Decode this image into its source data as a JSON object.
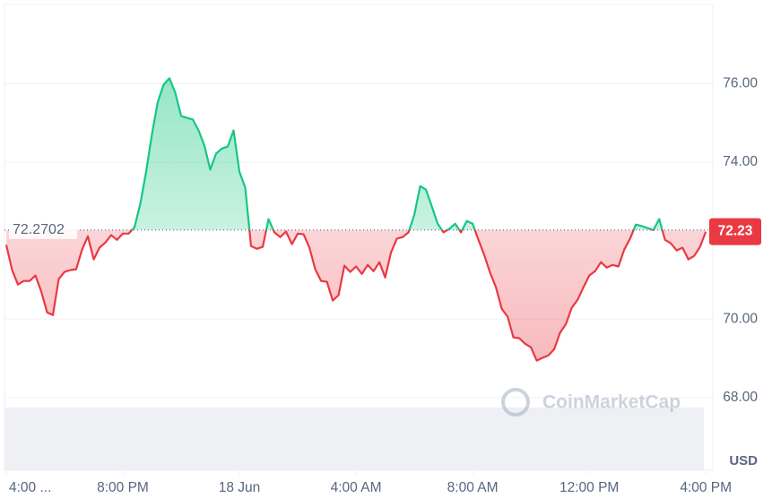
{
  "chart_data": {
    "type": "line",
    "base_value": 72.2702,
    "base_label": "72.2702",
    "price_label": 72.23,
    "currency": "USD",
    "watermark": "CoinMarketCap",
    "up_color": "#16c784",
    "down_color": "#ea3943",
    "x": [
      0.0,
      0.2,
      0.4,
      0.6,
      0.8,
      1.0,
      1.2,
      1.4,
      1.6,
      1.8,
      2.0,
      2.2,
      2.4,
      2.6,
      2.8,
      3.0,
      3.2,
      3.4,
      3.6,
      3.8,
      4.0,
      4.2,
      4.4,
      4.6,
      4.8,
      5.0,
      5.2,
      5.4,
      5.6,
      5.8,
      6.0,
      6.2,
      6.4,
      6.6,
      6.8,
      7.0,
      7.2,
      7.4,
      7.6,
      7.8,
      8.0,
      8.2,
      8.4,
      8.6,
      8.8,
      9.0,
      9.2,
      9.4,
      9.6,
      9.8,
      10.0,
      10.2,
      10.4,
      10.6,
      10.8,
      11.0,
      11.2,
      11.4,
      11.6,
      11.8,
      12.0,
      12.2,
      12.4,
      12.6,
      12.8,
      13.0,
      13.2,
      13.4,
      13.6,
      13.8,
      14.0,
      14.2,
      14.4,
      14.6,
      14.8,
      15.0,
      15.2,
      15.4,
      15.6,
      15.8,
      16.0,
      16.2,
      16.4,
      16.6,
      16.8,
      17.0,
      17.2,
      17.4,
      17.6,
      17.8,
      18.0,
      18.2,
      18.4,
      18.6,
      18.8,
      19.0,
      19.2,
      19.4,
      19.6,
      19.8,
      20.0,
      20.2,
      20.4,
      20.6,
      20.8,
      21.0,
      21.2,
      21.4,
      21.6,
      21.8,
      22.0,
      22.2,
      22.4,
      22.6,
      22.8,
      23.0,
      23.2,
      23.4,
      23.6,
      23.8,
      24.0
    ],
    "series": [
      {
        "values": [
          71.89,
          71.25,
          70.88,
          70.97,
          70.97,
          71.11,
          70.7,
          70.17,
          70.1,
          71.02,
          71.2,
          71.25,
          71.27,
          71.77,
          72.11,
          71.52,
          71.82,
          71.95,
          72.14,
          72.02,
          72.18,
          72.18,
          72.34,
          72.94,
          73.76,
          74.72,
          75.54,
          75.98,
          76.14,
          75.77,
          75.18,
          75.13,
          75.09,
          74.81,
          74.42,
          73.81,
          74.22,
          74.35,
          74.4,
          74.81,
          73.76,
          73.35,
          71.86,
          71.79,
          71.84,
          72.55,
          72.21,
          72.09,
          72.23,
          71.91,
          72.18,
          72.16,
          71.82,
          71.27,
          70.97,
          70.95,
          70.47,
          70.61,
          71.36,
          71.2,
          71.34,
          71.15,
          71.38,
          71.22,
          71.45,
          71.06,
          71.7,
          72.05,
          72.09,
          72.21,
          72.66,
          73.39,
          73.3,
          72.87,
          72.43,
          72.21,
          72.3,
          72.43,
          72.21,
          72.5,
          72.43,
          72.02,
          71.63,
          71.18,
          70.81,
          70.26,
          70.06,
          69.53,
          69.51,
          69.37,
          69.28,
          68.94,
          69.01,
          69.07,
          69.23,
          69.65,
          69.87,
          70.29,
          70.49,
          70.81,
          71.11,
          71.22,
          71.45,
          71.31,
          71.38,
          71.34,
          71.77,
          72.05,
          72.41,
          72.37,
          72.32,
          72.27,
          72.55,
          72.02,
          71.93,
          71.75,
          71.82,
          71.52,
          71.61,
          71.84,
          72.23
        ]
      }
    ],
    "xlim": [
      -0.06,
      24.24
    ],
    "xticks": [
      {
        "value": 0,
        "label": "4:00 ..."
      },
      {
        "value": 4,
        "label": "8:00 PM"
      },
      {
        "value": 8,
        "label": "18 Jun"
      },
      {
        "value": 12,
        "label": "4:00 AM"
      },
      {
        "value": 16,
        "label": "8:00 AM"
      },
      {
        "value": 20,
        "label": "12:00 PM"
      },
      {
        "value": 24,
        "label": "4:00 PM"
      }
    ],
    "ylim": [
      66.6,
      78.0
    ],
    "yticks": [
      {
        "value": 68,
        "label": "68.00"
      },
      {
        "value": 70,
        "label": "70.00"
      },
      {
        "value": 74,
        "label": "74.00"
      },
      {
        "value": 76,
        "label": "76.00"
      }
    ],
    "grid": true
  }
}
